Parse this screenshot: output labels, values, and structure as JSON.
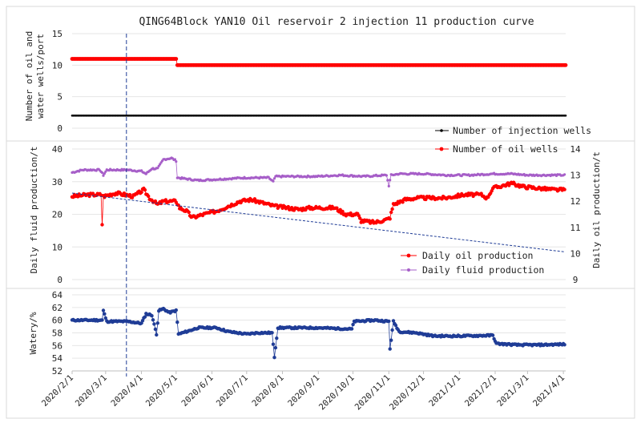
{
  "chart_data": {
    "type": "line",
    "title": "QING64Block YAN10 Oil reservoir 2 injection 11 production curve",
    "x_ticks": [
      "2020/2/1",
      "2020/3/1",
      "2020/4/1",
      "2020/5/1",
      "2020/6/1",
      "2020/7/1",
      "2020/8/1",
      "2020/9/1",
      "2020/10/1",
      "2020/11/1",
      "2020/12/1",
      "2021/1/1",
      "2021/2/1",
      "2021/3/1",
      "2021/4/1"
    ],
    "marker_line_date": "2020/3/19",
    "panels": [
      {
        "id": "wells",
        "ylabel": "Number of oil and water wells/port",
        "ylim": [
          0,
          15
        ],
        "yticks": [
          "0",
          "5",
          "10",
          "15"
        ],
        "series": [
          {
            "name": "Number of injection wells",
            "color": "#000000",
            "points": [
              [
                "2020/2/1",
                2
              ],
              [
                "2021/4/3",
                2
              ]
            ]
          },
          {
            "name": "Number of oil wells",
            "color": "#ff0000",
            "points": [
              [
                "2020/2/1",
                11
              ],
              [
                "2020/5/1",
                11
              ],
              [
                "2020/5/2",
                10
              ],
              [
                "2021/4/3",
                10
              ]
            ]
          }
        ]
      },
      {
        "id": "production",
        "ylabel_left": "Daily fluid production/t",
        "ylabel_right": "Daily oil production/t",
        "ylim_left": [
          0,
          40
        ],
        "yticks_left": [
          "0",
          "10",
          "20",
          "30",
          "40"
        ],
        "ylim_right": [
          9,
          14
        ],
        "yticks_right": [
          "9",
          "10",
          "11",
          "12",
          "13",
          "14"
        ],
        "series": [
          {
            "name": "Daily oil production",
            "axis": "left",
            "color": "#ff0000",
            "points": [
              [
                "2020/2/1",
                25.5
              ],
              [
                "2020/2/15",
                26
              ],
              [
                "2020/2/26",
                26
              ],
              [
                "2020/2/27",
                17
              ],
              [
                "2020/2/28",
                25.5
              ],
              [
                "2020/3/10",
                26.5
              ],
              [
                "2020/3/18",
                26
              ],
              [
                "2020/3/25",
                25.5
              ],
              [
                "2020/4/3",
                27.5
              ],
              [
                "2020/4/8",
                25
              ],
              [
                "2020/4/15",
                23
              ],
              [
                "2020/4/20",
                24
              ],
              [
                "2020/5/1",
                24
              ],
              [
                "2020/5/4",
                22
              ],
              [
                "2020/5/10",
                21
              ],
              [
                "2020/5/15",
                19
              ],
              [
                "2020/5/25",
                20
              ],
              [
                "2020/6/5",
                21
              ],
              [
                "2020/6/15",
                22.5
              ],
              [
                "2020/6/25",
                24
              ],
              [
                "2020/7/5",
                24.5
              ],
              [
                "2020/7/15",
                23.5
              ],
              [
                "2020/7/25",
                22.5
              ],
              [
                "2020/8/5",
                22
              ],
              [
                "2020/8/15",
                21.5
              ],
              [
                "2020/8/25",
                22
              ],
              [
                "2020/9/5",
                22
              ],
              [
                "2020/9/15",
                22
              ],
              [
                "2020/9/20",
                21
              ],
              [
                "2020/9/25",
                20
              ],
              [
                "2020/10/5",
                20
              ],
              [
                "2020/10/8",
                18
              ],
              [
                "2020/10/20",
                17.5
              ],
              [
                "2020/10/31",
                18.5
              ],
              [
                "2020/11/2",
                19
              ],
              [
                "2020/11/5",
                23
              ],
              [
                "2020/11/15",
                24.5
              ],
              [
                "2020/11/25",
                25
              ],
              [
                "2020/12/5",
                25
              ],
              [
                "2020/12/20",
                25
              ],
              [
                "2021/1/5",
                26
              ],
              [
                "2021/1/20",
                26
              ],
              [
                "2021/1/25",
                25
              ],
              [
                "2021/1/30",
                28
              ],
              [
                "2021/2/15",
                29.5
              ],
              [
                "2021/2/25",
                28.5
              ],
              [
                "2021/3/10",
                28
              ],
              [
                "2021/3/25",
                27.5
              ],
              [
                "2021/4/2",
                27.5
              ]
            ]
          },
          {
            "name": "Daily fluid production",
            "axis": "right",
            "color": "#a65ec8",
            "points": [
              [
                "2020/2/1",
                13.1
              ],
              [
                "2020/2/10",
                13.2
              ],
              [
                "2020/2/25",
                13.2
              ],
              [
                "2020/2/28",
                13.0
              ],
              [
                "2020/3/2",
                13.2
              ],
              [
                "2020/3/10",
                13.2
              ],
              [
                "2020/3/20",
                13.2
              ],
              [
                "2020/4/1",
                13.15
              ],
              [
                "2020/4/5",
                13.05
              ],
              [
                "2020/4/10",
                13.25
              ],
              [
                "2020/4/15",
                13.25
              ],
              [
                "2020/4/20",
                13.6
              ],
              [
                "2020/4/27",
                13.65
              ],
              [
                "2020/5/1",
                13.55
              ],
              [
                "2020/5/2",
                12.9
              ],
              [
                "2020/5/20",
                12.8
              ],
              [
                "2020/6/10",
                12.85
              ],
              [
                "2020/6/30",
                12.9
              ],
              [
                "2020/7/20",
                12.9
              ],
              [
                "2020/7/24",
                12.75
              ],
              [
                "2020/7/26",
                12.95
              ],
              [
                "2020/8/10",
                12.95
              ],
              [
                "2020/8/30",
                12.95
              ],
              [
                "2020/9/20",
                13.0
              ],
              [
                "2020/10/10",
                12.95
              ],
              [
                "2020/10/30",
                13.0
              ],
              [
                "2020/11/1",
                12.6
              ],
              [
                "2020/11/3",
                13.0
              ],
              [
                "2020/11/10",
                13.05
              ],
              [
                "2020/12/1",
                13.05
              ],
              [
                "2020/12/20",
                13.0
              ],
              [
                "2021/1/10",
                13.0
              ],
              [
                "2021/1/30",
                13.05
              ],
              [
                "2021/2/15",
                13.05
              ],
              [
                "2021/3/1",
                13.0
              ],
              [
                "2021/4/2",
                13.0
              ]
            ]
          }
        ],
        "trend_line": {
          "points": [
            [
              "2020/2/1",
              26.5
            ],
            [
              "2021/4/2",
              8.5
            ]
          ]
        }
      },
      {
        "id": "watery",
        "ylabel": "Watery/%",
        "ylim": [
          52,
          64
        ],
        "yticks": [
          "52",
          "54",
          "56",
          "58",
          "60",
          "62",
          "64"
        ],
        "series": [
          {
            "name": "Watery",
            "color": "#1f3c96",
            "points": [
              [
                "2020/2/1",
                60
              ],
              [
                "2020/2/20",
                60
              ],
              [
                "2020/2/27",
                60
              ],
              [
                "2020/2/28",
                61.5
              ],
              [
                "2020/3/2",
                59.8
              ],
              [
                "2020/3/20",
                59.8
              ],
              [
                "2020/4/1",
                59.5
              ],
              [
                "2020/4/5",
                61
              ],
              [
                "2020/4/10",
                60.8
              ],
              [
                "2020/4/14",
                57.8
              ],
              [
                "2020/4/16",
                61.5
              ],
              [
                "2020/4/20",
                61.8
              ],
              [
                "2020/4/25",
                61.2
              ],
              [
                "2020/5/1",
                61.5
              ],
              [
                "2020/5/3",
                57.8
              ],
              [
                "2020/5/10",
                58.2
              ],
              [
                "2020/5/20",
                58.8
              ],
              [
                "2020/6/5",
                58.8
              ],
              [
                "2020/6/15",
                58.2
              ],
              [
                "2020/7/1",
                57.8
              ],
              [
                "2020/7/10",
                58
              ],
              [
                "2020/7/23",
                58
              ],
              [
                "2020/7/25",
                54.2
              ],
              [
                "2020/7/28",
                58.8
              ],
              [
                "2020/8/10",
                58.8
              ],
              [
                "2020/9/1",
                58.8
              ],
              [
                "2020/9/30",
                58.6
              ],
              [
                "2020/10/2",
                59.8
              ],
              [
                "2020/10/20",
                60
              ],
              [
                "2020/11/1",
                59.8
              ],
              [
                "2020/11/2",
                55.5
              ],
              [
                "2020/11/5",
                59.8
              ],
              [
                "2020/11/10",
                58.2
              ],
              [
                "2020/11/25",
                58
              ],
              [
                "2020/12/10",
                57.5
              ],
              [
                "2021/1/1",
                57.5
              ],
              [
                "2021/1/30",
                57.6
              ],
              [
                "2021/2/2",
                56.3
              ],
              [
                "2021/2/20",
                56.1
              ],
              [
                "2021/3/10",
                56.1
              ],
              [
                "2021/4/2",
                56.2
              ]
            ]
          }
        ]
      }
    ]
  }
}
